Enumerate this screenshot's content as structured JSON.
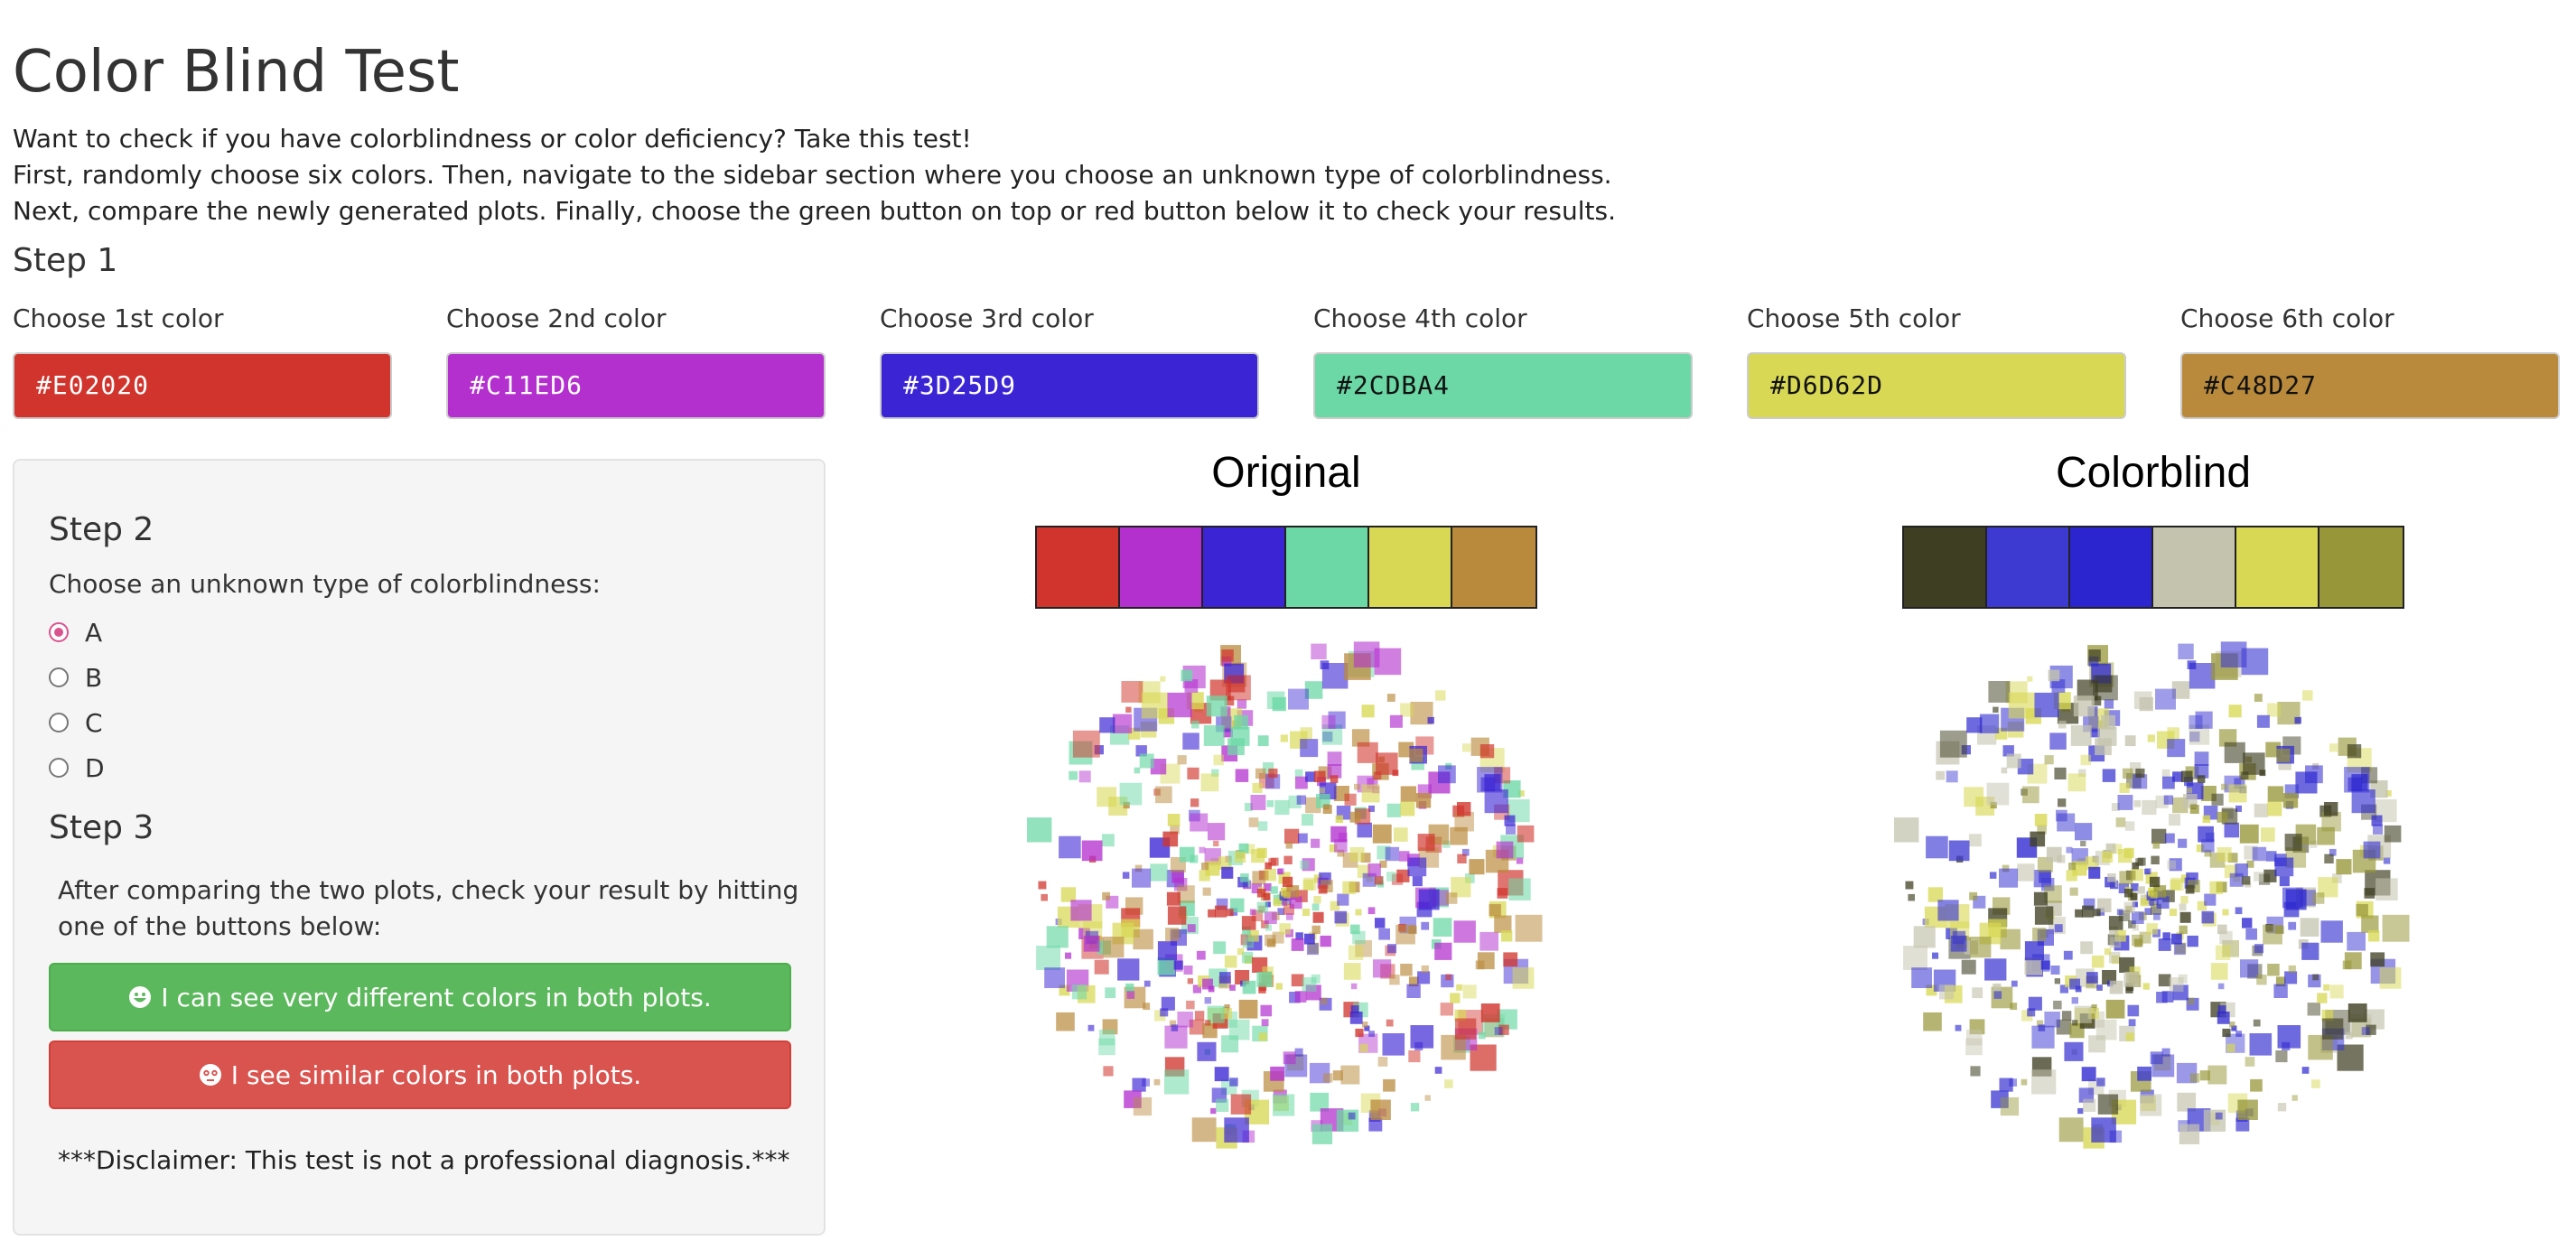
{
  "page": {
    "title": "Color Blind Test",
    "intro": [
      "Want to check if you have colorblindness or color deficiency? Take this test!",
      "First, randomly choose six colors. Then, navigate to the sidebar section where you choose an unknown type of colorblindness.",
      "Next, compare the newly generated plots. Finally, choose the green button on top or red button below it to check your results."
    ]
  },
  "step1": {
    "heading": "Step 1",
    "colors": [
      {
        "label": "Choose 1st color",
        "value": "#E02020",
        "bg": "#D0342C",
        "fg": "#ffffff"
      },
      {
        "label": "Choose 2nd color",
        "value": "#C11ED6",
        "bg": "#B330CF",
        "fg": "#ffffff"
      },
      {
        "label": "Choose 3rd color",
        "value": "#3D25D9",
        "bg": "#3A24D4",
        "fg": "#ffffff"
      },
      {
        "label": "Choose 4th color",
        "value": "#2CDBA4",
        "bg": "#6CD8A6",
        "fg": "#111111"
      },
      {
        "label": "Choose 5th color",
        "value": "#D6D62D",
        "bg": "#D8D854",
        "fg": "#111111"
      },
      {
        "label": "Choose 6th color",
        "value": "#C48D27",
        "bg": "#B98A3C",
        "fg": "#111111"
      }
    ]
  },
  "step2": {
    "heading": "Step 2",
    "question": "Choose an unknown type of colorblindness:",
    "options": [
      "A",
      "B",
      "C",
      "D"
    ],
    "selected": "A"
  },
  "step3": {
    "heading": "Step 3",
    "text": "After comparing the two plots, check your result by hitting one of the buttons below:",
    "different_label": "I can see very different colors in both plots.",
    "similar_label": "I see similar colors in both plots.",
    "disclaimer": "***Disclaimer: This test is not a professional diagnosis.***"
  },
  "plots": {
    "original": {
      "title": "Original",
      "palette": [
        "#D0342C",
        "#B330CF",
        "#3A24D4",
        "#6CD8A6",
        "#D8D854",
        "#B98A3C"
      ]
    },
    "colorblind": {
      "title": "Colorblind",
      "palette": [
        "#3E3E22",
        "#3D3AD2",
        "#2B25CF",
        "#C4C3AE",
        "#D8D854",
        "#979638"
      ]
    }
  },
  "icon_names": [
    "grin-icon",
    "meh-icon"
  ]
}
